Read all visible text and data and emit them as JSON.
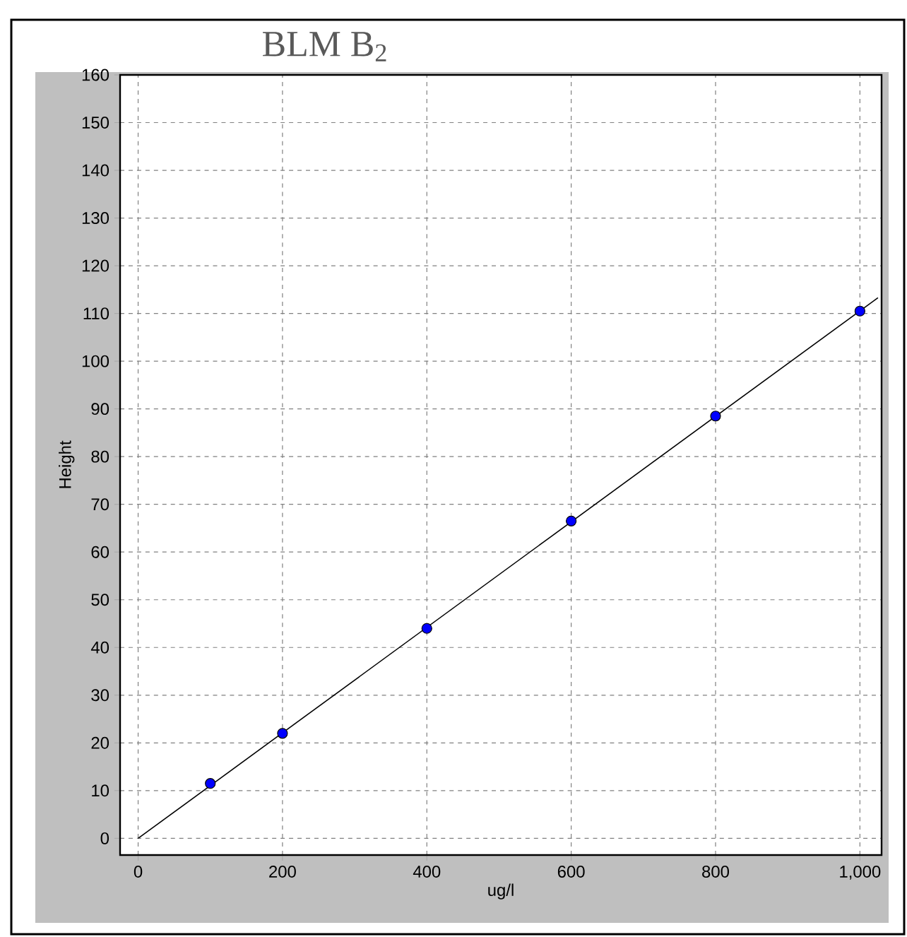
{
  "chart_data": {
    "type": "scatter",
    "title": "BLM B$_{2}$",
    "xlabel": "ug/l",
    "ylabel": "Height",
    "xlim": [
      -25,
      1030
    ],
    "ylim": [
      -3.5,
      160
    ],
    "xticks": [
      0,
      200,
      400,
      600,
      800,
      {
        "value": 1000,
        "label": "1,000"
      }
    ],
    "yticks": [
      0,
      10,
      20,
      30,
      40,
      50,
      60,
      70,
      80,
      90,
      100,
      110,
      120,
      130,
      140,
      150,
      160
    ],
    "grid": true,
    "series": [
      {
        "color": "#0000ff",
        "marker": "circle",
        "x": [
          100,
          200,
          400,
          600,
          800,
          1000
        ],
        "values": [
          11.5,
          22,
          44,
          66.5,
          88.5,
          110.5
        ]
      },
      {
        "type": "line",
        "color": "#000000",
        "marker": "none",
        "line_style": "solid",
        "x": [
          0,
          1025
        ],
        "values": [
          0,
          113.3
        ]
      }
    ]
  }
}
